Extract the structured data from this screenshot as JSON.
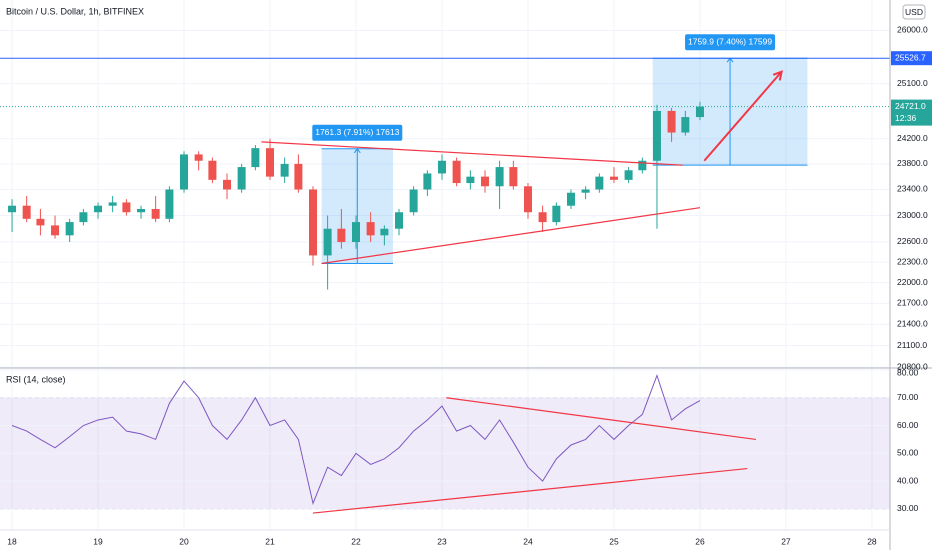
{
  "chart_data": {
    "type": "candlestick",
    "title": "Bitcoin / U.S. Dollar, 1h, BITFINEX",
    "currency": "USD",
    "log_scale": true,
    "grid": true,
    "up_color": "#26a69a",
    "down_color": "#ef5350",
    "xlim": [
      17.86,
      28.21
    ],
    "xticks": [
      18,
      19,
      20,
      21,
      22,
      23,
      24,
      25,
      26,
      27,
      28
    ],
    "ylim": [
      20790,
      26530
    ],
    "yticks": [
      {
        "value": 26000,
        "label": "26000.0"
      },
      {
        "value": 25100,
        "label": "25100.0"
      },
      {
        "value": 24200,
        "label": "24200.0"
      },
      {
        "value": 23800,
        "label": "23800.0"
      },
      {
        "value": 23400,
        "label": "23400.0"
      },
      {
        "value": 23000,
        "label": "23000.0"
      },
      {
        "value": 22600,
        "label": "22600.0"
      },
      {
        "value": 22300,
        "label": "22300.0"
      },
      {
        "value": 22000,
        "label": "22000.0"
      },
      {
        "value": 21700,
        "label": "21700.0"
      },
      {
        "value": 21400,
        "label": "21400.0"
      },
      {
        "value": 21100,
        "label": "21100.0"
      },
      {
        "value": 20800,
        "label": "20800.0"
      }
    ],
    "x": [
      18.0,
      18.17,
      18.33,
      18.5,
      18.67,
      18.83,
      19.0,
      19.17,
      19.33,
      19.5,
      19.67,
      19.83,
      20.0,
      20.17,
      20.33,
      20.5,
      20.67,
      20.83,
      21.0,
      21.17,
      21.33,
      21.5,
      21.67,
      21.83,
      22.0,
      22.17,
      22.33,
      22.5,
      22.67,
      22.83,
      23.0,
      23.17,
      23.33,
      23.5,
      23.67,
      23.83,
      24.0,
      24.17,
      24.33,
      24.5,
      24.67,
      24.83,
      25.0,
      25.17,
      25.33,
      25.5,
      25.67,
      25.83,
      26.0
    ],
    "open": [
      23050,
      23150,
      22950,
      22850,
      22700,
      22900,
      23050,
      23150,
      23200,
      23050,
      23100,
      22950,
      23400,
      23950,
      23850,
      23550,
      23400,
      23750,
      24050,
      23600,
      23800,
      23400,
      22400,
      22800,
      22600,
      22900,
      22700,
      22800,
      23050,
      23400,
      23650,
      23850,
      23500,
      23600,
      23450,
      23750,
      23450,
      23050,
      22900,
      23150,
      23350,
      23400,
      23600,
      23550,
      23700,
      23850,
      24650,
      24300,
      24550
    ],
    "high": [
      23250,
      23300,
      23100,
      23000,
      22950,
      23100,
      23200,
      23300,
      23250,
      23150,
      23300,
      23450,
      24000,
      24000,
      23900,
      23650,
      23800,
      24100,
      24200,
      23900,
      23950,
      23450,
      23000,
      23100,
      23000,
      23050,
      22850,
      23100,
      23450,
      23700,
      23950,
      23900,
      23700,
      23700,
      23850,
      23850,
      23500,
      23150,
      23200,
      23400,
      23450,
      23650,
      23750,
      23750,
      23900,
      24750,
      24700,
      24650,
      24800
    ],
    "low": [
      22750,
      22900,
      22700,
      22650,
      22600,
      22850,
      22950,
      23050,
      23000,
      22950,
      22900,
      22900,
      23350,
      23700,
      23500,
      23250,
      23350,
      23700,
      23550,
      23500,
      23350,
      22250,
      21900,
      22500,
      22500,
      22600,
      22550,
      22700,
      23000,
      23300,
      23550,
      23450,
      23400,
      23350,
      23100,
      23400,
      22950,
      22750,
      22850,
      23100,
      23250,
      23350,
      23500,
      23500,
      23650,
      22800,
      24150,
      24250,
      24500
    ],
    "close": [
      23150,
      22950,
      22850,
      22700,
      22900,
      23050,
      23150,
      23200,
      23050,
      23100,
      22950,
      23400,
      23950,
      23850,
      23550,
      23400,
      23750,
      24050,
      23600,
      23800,
      23400,
      22400,
      22800,
      22600,
      22900,
      22700,
      22800,
      23050,
      23400,
      23650,
      23850,
      23500,
      23600,
      23450,
      23750,
      23450,
      23050,
      22900,
      23150,
      23350,
      23400,
      23600,
      23550,
      23700,
      23850,
      24650,
      24300,
      24550,
      24721
    ],
    "hline": {
      "value": 25526.7,
      "label": "25526.7",
      "color": "#2962ff"
    },
    "last_price": {
      "value": 24721,
      "label": "24721.0",
      "countdown": "12:36"
    },
    "trendlines": [
      {
        "x": [
          20.9,
          25.8
        ],
        "y": [
          24150,
          23780
        ],
        "color": "#f23645"
      },
      {
        "x": [
          21.6,
          26.0
        ],
        "y": [
          22280,
          23120
        ],
        "color": "#f23645"
      }
    ],
    "arrow": {
      "x": [
        26.05,
        26.95
      ],
      "y": [
        23850,
        25300
      ],
      "color": "#f23645"
    },
    "measures": [
      {
        "x": [
          21.6,
          22.43
        ],
        "y": [
          22280,
          24040
        ],
        "label": "1761.3 (7.91%) 17613"
      },
      {
        "x": [
          25.45,
          27.25
        ],
        "y": [
          23780,
          25526.7
        ],
        "label": "1759.9 (7.40%) 17599"
      }
    ],
    "rsi": {
      "title": "RSI (14, close)",
      "color": "#7e57c2",
      "ylim": [
        22.4,
        80.7
      ],
      "band": [
        30,
        70
      ],
      "yticks": [
        {
          "value": 80,
          "label": "80.00"
        },
        {
          "value": 70,
          "label": "70.00"
        },
        {
          "value": 60,
          "label": "60.00"
        },
        {
          "value": 50,
          "label": "50.00"
        },
        {
          "value": 40,
          "label": "40.00"
        },
        {
          "value": 30,
          "label": "30.00"
        }
      ],
      "values": [
        60,
        58,
        55,
        52,
        56,
        60,
        62,
        63,
        58,
        57,
        55,
        68,
        76,
        70,
        60,
        55,
        62,
        70,
        60,
        62,
        55,
        32,
        45,
        42,
        50,
        46,
        48,
        52,
        58,
        62,
        67,
        58,
        60,
        55,
        62,
        54,
        45,
        40,
        48,
        53,
        55,
        60,
        55,
        60,
        64,
        78,
        62,
        66,
        69
      ],
      "trendlines": [
        {
          "x": [
            23.05,
            26.65
          ],
          "y": [
            70,
            55
          ],
          "color": "#f23645"
        },
        {
          "x": [
            21.5,
            26.55
          ],
          "y": [
            28.5,
            44.5
          ],
          "color": "#f23645"
        }
      ]
    }
  }
}
